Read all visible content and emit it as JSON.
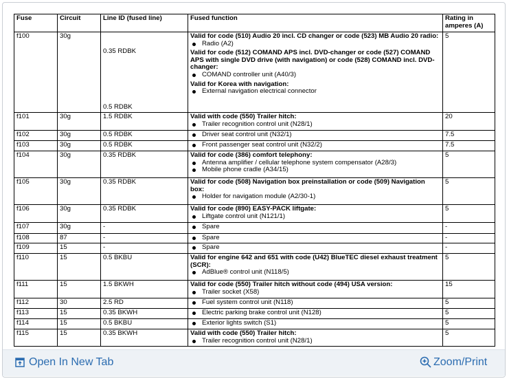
{
  "table": {
    "header": [
      "Fuse",
      "Circuit",
      "Line ID (fused line)",
      "Fused function",
      "Rating in amperes (A)"
    ],
    "rows": [
      {
        "fuse": "f100",
        "circuit": "30g",
        "line_ids": [
          "0.35 RDBK",
          "0.5 RDBK"
        ],
        "function": [
          {
            "heading": "Valid for code (510) Audio 20 incl. CD changer or code (523) MB Audio 20 radio:",
            "items": [
              "Radio (A2)"
            ]
          },
          {
            "heading": "Valid for code (512) COMAND APS incl. DVD-changer or code (527) COMAND APS with single DVD drive (with navigation) or code (528) COMAND incl. DVD-changer:",
            "items": [
              "COMAND controller unit (A40/3)"
            ]
          },
          {
            "heading": "Valid for Korea with navigation:",
            "items": [
              "External navigation electrical connector"
            ]
          }
        ],
        "rating": "5"
      },
      {
        "fuse": "f101",
        "circuit": "30g",
        "line_ids": [
          "1.5 RDBK"
        ],
        "function": [
          {
            "heading": "Valid with code (550) Trailer hitch:",
            "items": [
              "Trailer recognition control unit (N28/1)"
            ]
          }
        ],
        "rating": "20"
      },
      {
        "fuse": "f102",
        "circuit": "30g",
        "line_ids": [
          "0.5 RDBK"
        ],
        "function": [
          {
            "items": [
              "Driver seat control unit (N32/1)"
            ]
          }
        ],
        "rating": "7.5"
      },
      {
        "fuse": "f103",
        "circuit": "30g",
        "line_ids": [
          "0.5 RDBK"
        ],
        "function": [
          {
            "items": [
              "Front passenger seat control unit (N32/2)"
            ]
          }
        ],
        "rating": "7.5"
      },
      {
        "fuse": "f104",
        "circuit": "30g",
        "line_ids": [
          "0.35 RDBK"
        ],
        "function": [
          {
            "heading": "Valid for code (386) comfort telephony:",
            "items": [
              "Antenna amplifier / cellular telephone system compensator (A28/3)",
              "Mobile phone cradle (A34/15)"
            ]
          }
        ],
        "rating": "5"
      },
      {
        "fuse": "f105",
        "circuit": "30g",
        "line_ids": [
          "0.35 RDBK"
        ],
        "function": [
          {
            "heading": "Valid for code (508) Navigation box preinstallation or code (509) Navigation box:",
            "items": [
              "Holder for navigation module (A2/30-1)"
            ]
          }
        ],
        "rating": "5"
      },
      {
        "fuse": "f106",
        "circuit": "30g",
        "line_ids": [
          "0.35 RDBK"
        ],
        "function": [
          {
            "heading": "Valid for code (890) EASY-PACK liftgate:",
            "items": [
              "Liftgate control unit (N121/1)"
            ]
          }
        ],
        "rating": "5"
      },
      {
        "fuse": "f107",
        "circuit": "30g",
        "line_ids": [
          "-"
        ],
        "function": [
          {
            "items": [
              "Spare"
            ]
          }
        ],
        "rating": "-"
      },
      {
        "fuse": "f108",
        "circuit": "87",
        "line_ids": [
          "-"
        ],
        "function": [
          {
            "items": [
              "Spare"
            ]
          }
        ],
        "rating": "-"
      },
      {
        "fuse": "f109",
        "circuit": "15",
        "line_ids": [
          "-"
        ],
        "function": [
          {
            "items": [
              "Spare"
            ]
          }
        ],
        "rating": "-"
      },
      {
        "fuse": "f110",
        "circuit": "15",
        "line_ids": [
          "0.5 BKBU"
        ],
        "function": [
          {
            "heading": "Valid for engine 642 and 651 with code (U42) BlueTEC diesel exhaust treatment (SCR):",
            "items": [
              "AdBlue® control unit (N118/5)"
            ]
          }
        ],
        "rating": "5"
      },
      {
        "fuse": "f111",
        "circuit": "15",
        "line_ids": [
          "1.5 BKWH"
        ],
        "function": [
          {
            "heading": "Valid for code (550) Trailer hitch without code (494) USA version:",
            "items": [
              "Trailer socket (X58)"
            ]
          }
        ],
        "rating": "15"
      },
      {
        "fuse": "f112",
        "circuit": "30",
        "line_ids": [
          "2.5  RD"
        ],
        "function": [
          {
            "items": [
              "Fuel system control unit (N118)"
            ]
          }
        ],
        "rating": "5"
      },
      {
        "fuse": "f113",
        "circuit": "15",
        "line_ids": [
          "0.35 BKWH"
        ],
        "function": [
          {
            "items": [
              "Electric parking brake control unit (N128)"
            ]
          }
        ],
        "rating": "5"
      },
      {
        "fuse": "f114",
        "circuit": "15",
        "line_ids": [
          "0.5 BKBU"
        ],
        "function": [
          {
            "items": [
              "Exterior lights switch (S1)"
            ]
          }
        ],
        "rating": "5"
      },
      {
        "fuse": "f115",
        "circuit": "15",
        "line_ids": [
          "0.35 BKWH"
        ],
        "function": [
          {
            "heading": "Valid with code (550) Trailer hitch:",
            "items": [
              "Trailer recognition control unit (N28/1)"
            ]
          }
        ],
        "rating": "5"
      }
    ]
  },
  "footer": {
    "open_tab": "Open In New Tab",
    "zoom": "Zoom/Print"
  }
}
